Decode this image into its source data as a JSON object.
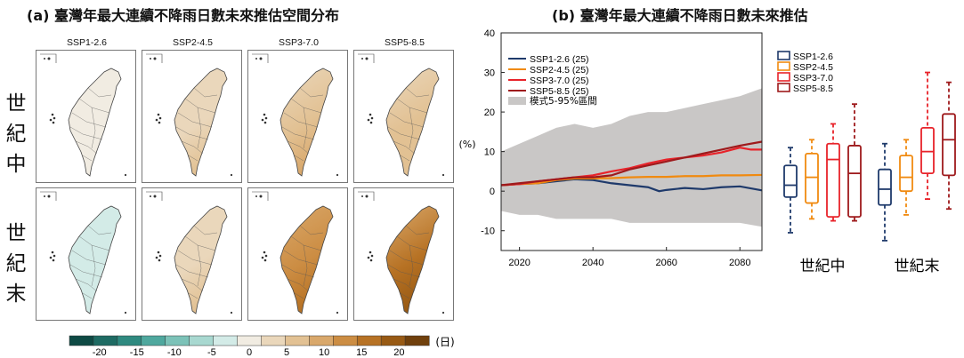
{
  "panel_a": {
    "title": "(a) 臺灣年最大連續不降雨日數未來推估空間分布",
    "columns": [
      "SSP1-2.6",
      "SSP2-4.5",
      "SSP3-7.0",
      "SSP5-8.5"
    ],
    "rows": [
      "世紀中",
      "世紀末"
    ],
    "colorbar": {
      "ticks": [
        "-20",
        "-15",
        "-10",
        "-5",
        "0",
        "5",
        "10",
        "15",
        "20"
      ],
      "unit": "(日)",
      "colors": [
        "#0e4a44",
        "#1e6b63",
        "#2f8a80",
        "#4fa89e",
        "#7cc2b8",
        "#a8d8d0",
        "#d3ebe7",
        "#f1ece2",
        "#ead7bb",
        "#e2c193",
        "#d9a86b",
        "#cc8d43",
        "#b77224",
        "#985a14",
        "#70400c"
      ]
    },
    "map_intensity": [
      [
        0.05,
        0.35,
        0.55,
        0.45
      ],
      [
        -0.25,
        0.35,
        1.0,
        1.2
      ]
    ]
  },
  "panel_b": {
    "title": "(b) 臺灣年最大連續不降雨日數未來推估",
    "y_unit": "(%)",
    "legend_shade": "模式5-95%區間",
    "box_groups": [
      "世紀中",
      "世紀末"
    ]
  },
  "chart_data": [
    {
      "type": "line",
      "x_start": 2015,
      "x_end": 2086,
      "xticks": [
        "2020",
        "2040",
        "2060",
        "2080"
      ],
      "ylim": [
        -15,
        40
      ],
      "yticks": [
        "-10",
        "0",
        "10",
        "20",
        "30",
        "40"
      ],
      "series": [
        {
          "name": "SSP1-2.6 (25)",
          "color": "#1f3a6b",
          "x": [
            2015,
            2020,
            2025,
            2030,
            2035,
            2040,
            2045,
            2050,
            2055,
            2058,
            2060,
            2065,
            2070,
            2075,
            2080,
            2086
          ],
          "y": [
            1.5,
            1.8,
            2.0,
            2.5,
            3.0,
            2.8,
            2.0,
            1.5,
            1.0,
            0.0,
            0.3,
            0.8,
            0.5,
            1.0,
            1.2,
            0.2
          ]
        },
        {
          "name": "SSP2-4.5 (25)",
          "color": "#f08a10",
          "x": [
            2015,
            2020,
            2025,
            2030,
            2035,
            2040,
            2045,
            2050,
            2055,
            2060,
            2065,
            2070,
            2075,
            2080,
            2086
          ],
          "y": [
            1.5,
            1.8,
            2.0,
            2.8,
            3.2,
            3.2,
            3.3,
            3.5,
            3.6,
            3.6,
            3.8,
            3.8,
            4.0,
            4.0,
            4.1
          ]
        },
        {
          "name": "SSP3-7.0 (25)",
          "color": "#e8232a",
          "x": [
            2015,
            2020,
            2025,
            2030,
            2035,
            2040,
            2045,
            2050,
            2055,
            2060,
            2065,
            2070,
            2075,
            2080,
            2083,
            2086
          ],
          "y": [
            1.5,
            1.8,
            2.5,
            3.0,
            3.5,
            4.0,
            5.0,
            5.8,
            7.0,
            8.0,
            8.5,
            9.0,
            9.8,
            11.0,
            10.5,
            10.5
          ]
        },
        {
          "name": "SSP5-8.5 (25)",
          "color": "#9e1a1c",
          "x": [
            2015,
            2020,
            2025,
            2030,
            2035,
            2040,
            2045,
            2050,
            2055,
            2060,
            2065,
            2070,
            2075,
            2080,
            2086
          ],
          "y": [
            1.5,
            2.0,
            2.5,
            3.0,
            3.5,
            3.5,
            4.0,
            5.5,
            6.5,
            7.5,
            8.5,
            9.5,
            10.5,
            11.5,
            12.5
          ]
        }
      ],
      "band": {
        "name": "模式5-95%區間",
        "color": "#c9c7c6",
        "x": [
          2015,
          2020,
          2025,
          2030,
          2035,
          2040,
          2045,
          2050,
          2055,
          2060,
          2065,
          2070,
          2075,
          2080,
          2086
        ],
        "upper": [
          10,
          12,
          14,
          16,
          17,
          16,
          17,
          19,
          20,
          20,
          21,
          22,
          23,
          24,
          26
        ],
        "lower": [
          -5,
          -6,
          -6,
          -7,
          -7,
          -7,
          -7,
          -8,
          -8,
          -8,
          -8,
          -8,
          -8,
          -8,
          -9
        ]
      }
    },
    {
      "type": "box",
      "groups": [
        "世紀中",
        "世紀末"
      ],
      "series": [
        {
          "name": "SSP1-2.6",
          "color": "#1f3a6b",
          "boxes": [
            {
              "min": -10.5,
              "q1": -1.5,
              "median": 1.5,
              "q3": 6.5,
              "max": 11
            },
            {
              "min": -12.5,
              "q1": -3.5,
              "median": 0.5,
              "q3": 5.5,
              "max": 12
            }
          ]
        },
        {
          "name": "SSP2-4.5",
          "color": "#f08a10",
          "boxes": [
            {
              "min": -7,
              "q1": -3,
              "median": 3.5,
              "q3": 9.5,
              "max": 13
            },
            {
              "min": -6,
              "q1": 0,
              "median": 3.5,
              "q3": 9,
              "max": 13
            }
          ]
        },
        {
          "name": "SSP3-7.0",
          "color": "#e8232a",
          "boxes": [
            {
              "min": -7.5,
              "q1": -6.5,
              "median": 8,
              "q3": 12,
              "max": 17
            },
            {
              "min": -2,
              "q1": 4.5,
              "median": 10,
              "q3": 16,
              "max": 30
            }
          ]
        },
        {
          "name": "SSP5-8.5",
          "color": "#9e1a1c",
          "boxes": [
            {
              "min": -7.5,
              "q1": -6.5,
              "median": 4.5,
              "q3": 11.5,
              "max": 22
            },
            {
              "min": -4.5,
              "q1": 4,
              "median": 13,
              "q3": 19.5,
              "max": 27.5
            }
          ]
        }
      ]
    }
  ]
}
